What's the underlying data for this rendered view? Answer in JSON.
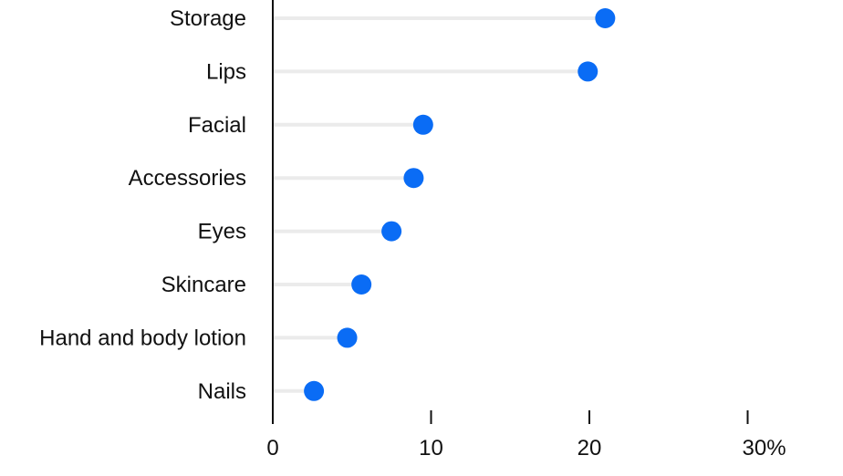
{
  "chart_data": {
    "type": "lollipop",
    "title": "",
    "xlabel": "",
    "ylabel": "",
    "categories": [
      "Storage",
      "Lips",
      "Facial",
      "Accessories",
      "Eyes",
      "Skincare",
      "Hand and body lotion",
      "Nails"
    ],
    "values": [
      21.0,
      19.9,
      9.5,
      8.9,
      7.5,
      5.6,
      4.7,
      2.6
    ],
    "xlim": [
      0,
      30
    ],
    "x_ticks": [
      0,
      10,
      20,
      30
    ],
    "x_tick_labels": [
      "0",
      "10",
      "20",
      "30%"
    ],
    "grid": false,
    "legend": "none",
    "colors": {
      "dot": "#0A6CF5",
      "stem": "#EBEBEB",
      "axis": "#111111",
      "text": "#111111"
    }
  }
}
